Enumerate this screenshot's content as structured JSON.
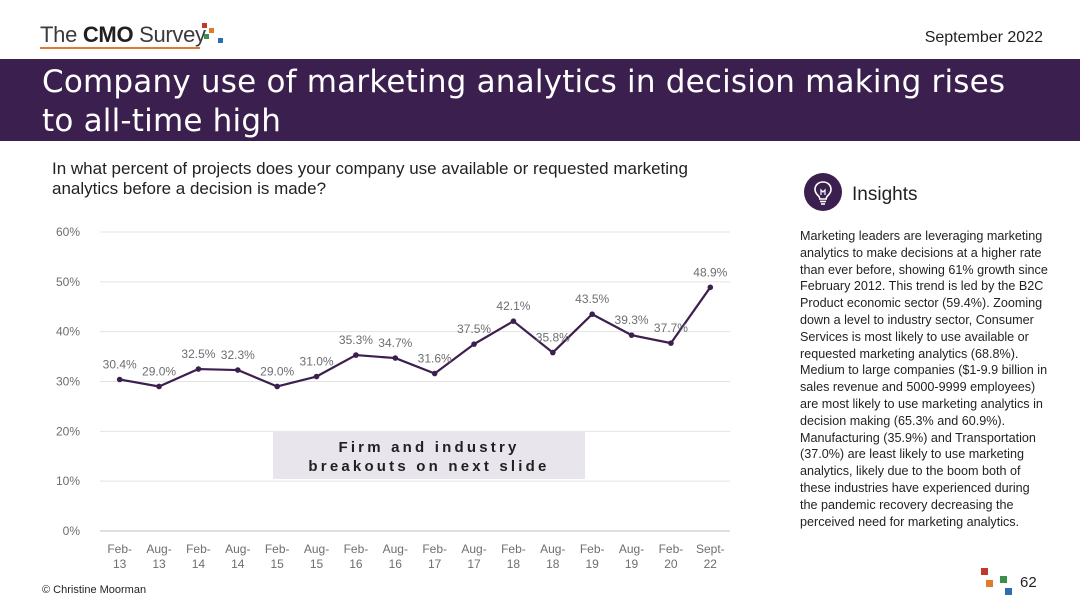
{
  "header": {
    "logo_prefix": "The ",
    "logo_bold": "CMO",
    "logo_suffix": " Survey",
    "date": "September 2022"
  },
  "title": "Company use of marketing analytics in decision making rises to all-time high",
  "question": "In what percent of projects does your company use available or requested marketing analytics before a decision is made?",
  "colors": {
    "banner": "#3b1f4e",
    "line": "#3b1f4e",
    "callout_bg": "#e8e6ec",
    "logo_squares": [
      "#c0392b",
      "#e07a2e",
      "#3a8f4b",
      "#2f6db3"
    ]
  },
  "chart_data": {
    "type": "line",
    "categories": [
      [
        "Feb-",
        "13"
      ],
      [
        "Aug-",
        "13"
      ],
      [
        "Feb-",
        "14"
      ],
      [
        "Aug-",
        "14"
      ],
      [
        "Feb-",
        "15"
      ],
      [
        "Aug-",
        "15"
      ],
      [
        "Feb-",
        "16"
      ],
      [
        "Aug-",
        "16"
      ],
      [
        "Feb-",
        "17"
      ],
      [
        "Aug-",
        "17"
      ],
      [
        "Feb-",
        "18"
      ],
      [
        "Aug-",
        "18"
      ],
      [
        "Feb-",
        "19"
      ],
      [
        "Aug-",
        "19"
      ],
      [
        "Feb-",
        "20"
      ],
      [
        "Sept-",
        "22"
      ]
    ],
    "values": [
      30.4,
      29.0,
      32.5,
      32.3,
      29.0,
      31.0,
      35.3,
      34.7,
      31.6,
      37.5,
      42.1,
      35.8,
      43.5,
      39.3,
      37.7,
      48.9
    ],
    "data_labels": [
      "30.4%",
      "29.0%",
      "32.5%",
      "32.3%",
      "29.0%",
      "31.0%",
      "35.3%",
      "34.7%",
      "31.6%",
      "37.5%",
      "42.1%",
      "35.8%",
      "43.5%",
      "39.3%",
      "37.7%",
      "48.9%"
    ],
    "yticks": [
      "0%",
      "10%",
      "20%",
      "30%",
      "40%",
      "50%",
      "60%"
    ],
    "ylim": [
      0,
      60
    ],
    "grid": true,
    "legend": "none",
    "annotation": [
      "Firm and industry",
      "breakouts on next slide"
    ]
  },
  "insights": {
    "title": "Insights",
    "icon": "lightbulb-icon",
    "body": "Marketing leaders are leveraging marketing analytics to make decisions at a higher rate than ever before, showing 61% growth since February 2012. This trend is led by the B2C Product economic sector (59.4%). Zooming down a level to industry sector, Consumer Services is most likely to use available or requested marketing analytics (68.8%). Medium to large companies ($1-9.9 billion in sales revenue and 5000-9999 employees) are most likely to use marketing analytics in decision making (65.3% and 60.9%). Manufacturing (35.9%) and Transportation (37.0%) are least likely to use marketing analytics, likely due to the boom both of these industries have experienced during the pandemic recovery decreasing the perceived need for marketing analytics."
  },
  "footer": {
    "copyright": "© Christine Moorman",
    "page_number": "62"
  }
}
